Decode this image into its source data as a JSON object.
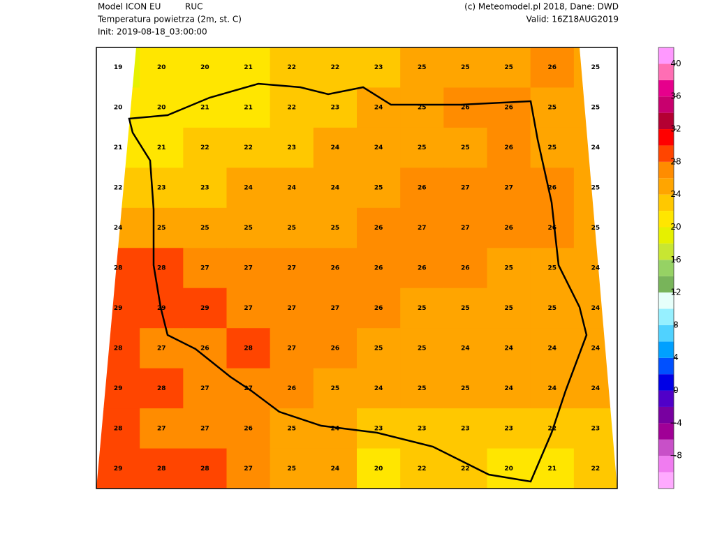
{
  "header": {
    "model": "Model ICON EU",
    "tag": "RUC",
    "variable": "Temperatura powietrza (2m, st. C)",
    "init": "Init: 2019-08-18_03:00:00",
    "credit": "(c) Meteomodel.pl 2018, Dane: DWD",
    "valid": "Valid: 16Z18AUG2019"
  },
  "map": {
    "grid": [
      [
        19,
        20,
        20,
        21,
        22,
        22,
        23,
        25,
        25,
        25,
        26,
        25
      ],
      [
        20,
        20,
        21,
        21,
        22,
        23,
        24,
        25,
        26,
        26,
        25,
        25
      ],
      [
        21,
        21,
        22,
        22,
        23,
        24,
        24,
        25,
        25,
        26,
        25,
        24
      ],
      [
        22,
        23,
        23,
        24,
        24,
        24,
        25,
        26,
        27,
        27,
        26,
        25
      ],
      [
        24,
        25,
        25,
        25,
        25,
        25,
        26,
        27,
        27,
        26,
        26,
        25
      ],
      [
        28,
        28,
        27,
        27,
        27,
        26,
        26,
        26,
        26,
        25,
        25,
        24
      ],
      [
        29,
        29,
        29,
        27,
        27,
        27,
        26,
        25,
        25,
        25,
        25,
        24
      ],
      [
        28,
        27,
        26,
        28,
        27,
        26,
        25,
        25,
        24,
        24,
        24,
        24
      ],
      [
        29,
        28,
        27,
        27,
        26,
        25,
        24,
        25,
        25,
        24,
        24,
        24
      ],
      [
        28,
        27,
        27,
        26,
        25,
        24,
        23,
        23,
        23,
        23,
        22,
        23
      ],
      [
        29,
        28,
        28,
        27,
        25,
        24,
        20,
        22,
        22,
        20,
        21,
        22
      ]
    ]
  },
  "colorbar": {
    "levels": [
      -12,
      -10,
      -8,
      -6,
      -4,
      -2,
      0,
      2,
      4,
      6,
      8,
      10,
      12,
      14,
      16,
      18,
      20,
      22,
      24,
      26,
      28,
      30,
      32,
      34,
      36,
      38,
      40,
      42
    ],
    "colors": [
      "#ffaaff",
      "#f07cf0",
      "#c850c8",
      "#a00096",
      "#7800a0",
      "#5000c8",
      "#0000e6",
      "#0050ff",
      "#00a0ff",
      "#50d2ff",
      "#96f0ff",
      "#e6fffa",
      "#78b45a",
      "#96d264",
      "#c8e632",
      "#e6f000",
      "#ffe600",
      "#ffc800",
      "#ffa500",
      "#ff8c00",
      "#ff4500",
      "#ff0000",
      "#b40032",
      "#c8006e",
      "#e6008c",
      "#ff6eb4",
      "#ff99ff"
    ],
    "ticks": [
      40,
      36,
      32,
      28,
      24,
      20,
      16,
      12,
      8,
      4,
      0,
      {
        "value": -4,
        "label": "−4"
      },
      {
        "value": -8,
        "label": "−8"
      }
    ]
  }
}
